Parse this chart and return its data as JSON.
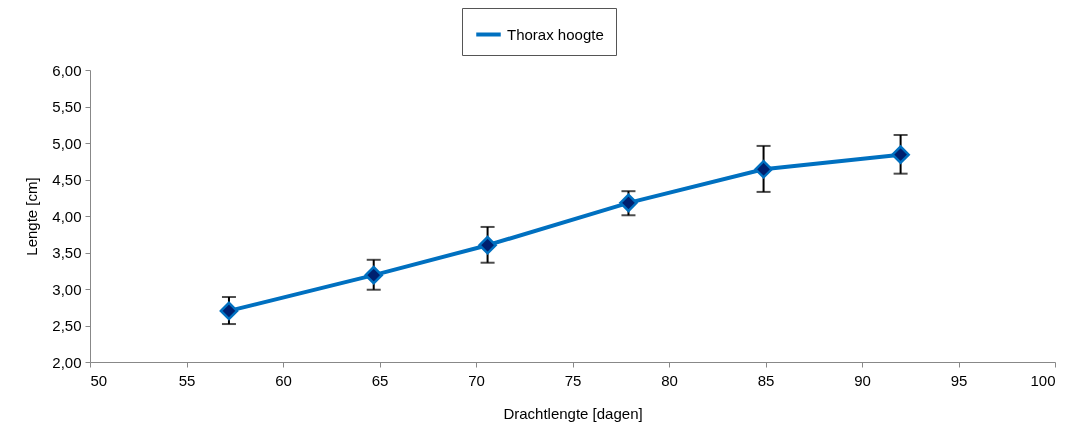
{
  "chart_data": {
    "type": "line",
    "xlabel": "Drachtlengte [dagen]",
    "ylabel": "Lengte [cm]",
    "x": [
      57.2,
      64.7,
      70.6,
      77.9,
      84.9,
      92.0
    ],
    "series": [
      {
        "name": "Thorax hoogte",
        "color": "#0070c0",
        "values": [
          2.7,
          3.19,
          3.6,
          4.18,
          4.64,
          4.84
        ],
        "errors": [
          [
            2.52,
            2.89
          ],
          [
            2.99,
            3.4
          ],
          [
            3.36,
            3.85
          ],
          [
            4.01,
            4.34
          ],
          [
            4.33,
            4.96
          ],
          [
            4.58,
            5.11
          ]
        ]
      }
    ],
    "xlim": [
      50,
      100
    ],
    "xticks": [
      50,
      55,
      60,
      65,
      70,
      75,
      80,
      85,
      90,
      95,
      100
    ],
    "ylim": [
      2,
      6
    ],
    "yticks": [
      {
        "value": 2,
        "label": "2,00"
      },
      {
        "value": 2.5,
        "label": "2,50"
      },
      {
        "value": 3,
        "label": "3,00"
      },
      {
        "value": 3.5,
        "label": "3,50"
      },
      {
        "value": 4,
        "label": "4,00"
      },
      {
        "value": 4.5,
        "label": "4,50"
      },
      {
        "value": 5,
        "label": "5,00"
      },
      {
        "value": 5.5,
        "label": "5,50"
      },
      {
        "value": 6,
        "label": "6,00"
      }
    ],
    "grid": false,
    "legend": "top",
    "marker": "diamond",
    "line_style": "solid"
  }
}
